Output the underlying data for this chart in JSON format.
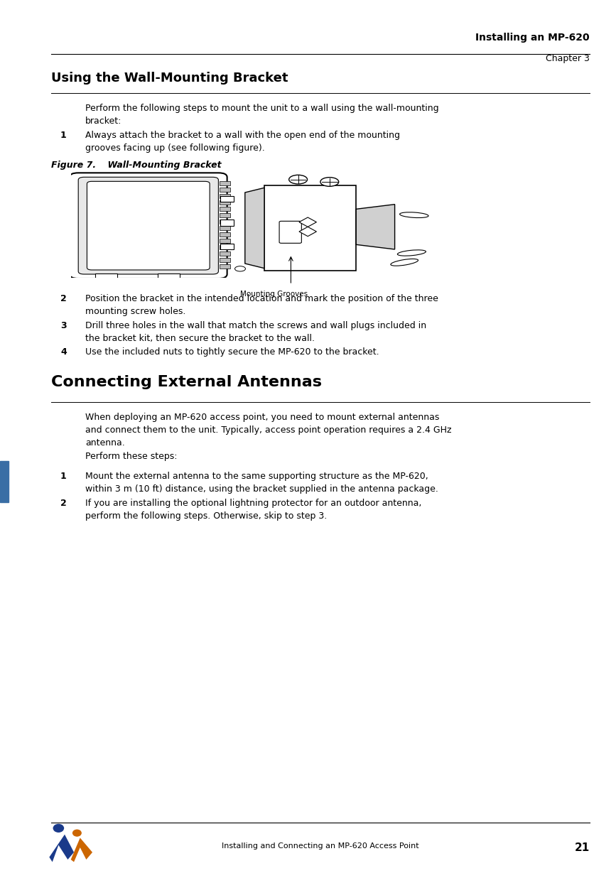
{
  "page_width": 8.67,
  "page_height": 12.36,
  "dpi": 100,
  "bg_color": "#ffffff",
  "header_title": "Installing an MP-620",
  "header_sub": "Chapter 3",
  "footer_text": "Installing and Connecting an MP-620 Access Point",
  "footer_page": "21",
  "section1_title": "Using the Wall-Mounting Bracket",
  "section1_intro": "Perform the following steps to mount the unit to a wall using the wall-mounting\nbracket:",
  "step1_num": "1",
  "step1_text": "Always attach the bracket to a wall with the open end of the mounting\ngrooves facing up (see following figure).",
  "figure_label": "Figure 7.",
  "figure_title": "    Wall-Mounting Bracket",
  "figure_caption": "Mounting Grooves",
  "step2_num": "2",
  "step2_text": "Position the bracket in the intended location and mark the position of the three\nmounting screw holes.",
  "step3_num": "3",
  "step3_text": "Drill three holes in the wall that match the screws and wall plugs included in\nthe bracket kit, then secure the bracket to the wall.",
  "step4_num": "4",
  "step4_text": "Use the included nuts to tightly secure the MP-620 to the bracket.",
  "section2_title": "Connecting External Antennas",
  "section2_intro": "When deploying an MP-620 access point, you need to mount external antennas\nand connect them to the unit. Typically, access point operation requires a 2.4 GHz\nantenna.",
  "section2_perform": "Perform these steps:",
  "step_b1_num": "1",
  "step_b1_text": "Mount the external antenna to the same supporting structure as the MP-620,\nwithin 3 m (10 ft) distance, using the bracket supplied in the antenna package.",
  "step_b2_num": "2",
  "step_b2_text": "If you are installing the optional lightning protector for an outdoor antenna,\nperform the following steps. Otherwise, skip to step 3.",
  "left_bar_color": "#3a6ea5",
  "text_color": "#000000",
  "line_color": "#000000",
  "header_title_fontsize": 10,
  "header_sub_fontsize": 9,
  "section1_title_fontsize": 13,
  "section2_title_fontsize": 16,
  "body_fontsize": 9,
  "step_num_fontsize": 9,
  "footer_fontsize": 8,
  "footer_page_fontsize": 11
}
